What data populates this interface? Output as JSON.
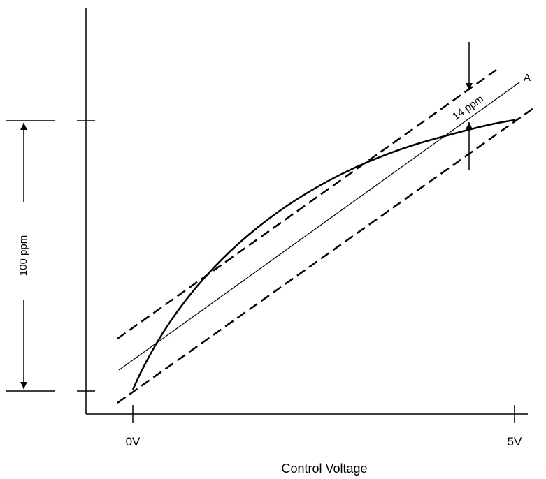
{
  "labels": {
    "x_tick_start": "0V",
    "x_tick_end": "5V",
    "x_axis_label": "Control Voltage",
    "span_label": "100 ppm",
    "gap_label": "14 ppm",
    "line_label": "A"
  },
  "colors": {
    "ink": "#000000",
    "background": "#ffffff"
  }
}
